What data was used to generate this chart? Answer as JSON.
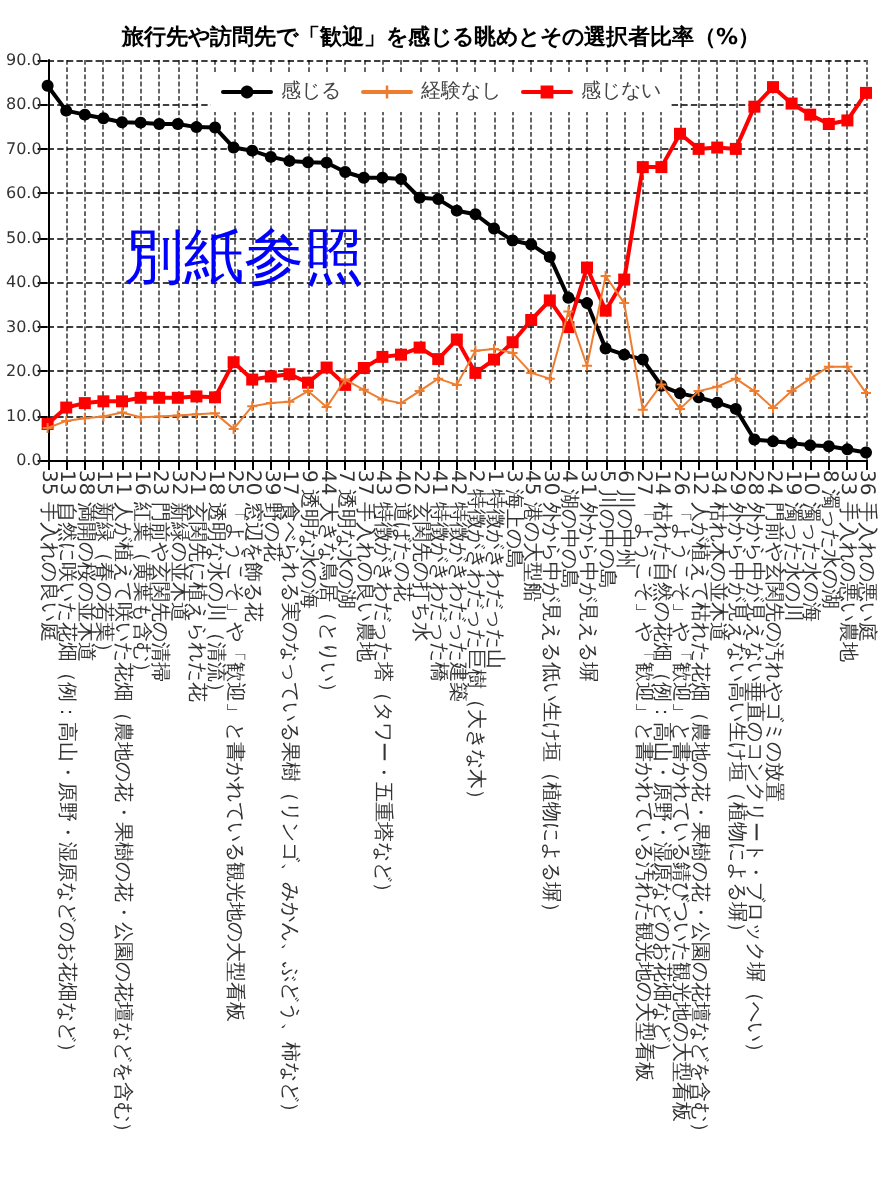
{
  "chart_data": {
    "type": "line",
    "title": "旅行先や訪問先で「歓迎」を感じる眺めとその選択者比率（%）",
    "categories": [
      "35 手入れの良い庭",
      "13 自然に咲いた花畑（例：高山・原野・湿原などのお花畑など）",
      "38 満開の桜の並木道",
      "15 新緑（春の若葉）",
      "11 人が植えて咲いた花畑（農地の花・果樹の花・公園の花壇などを含む）",
      "16 紅葉（黄葉も含む）",
      "23 門前や玄関先の清掃",
      "32 新緑の並木道",
      "21 玄関先に植えられた花",
      "18 透明な水の川（清流）",
      "25 「ようこそ」や「歓迎」と書かれている観光地の大型看板",
      "20 窓辺を飾る花",
      "39 野の花",
      "17 食べられる実のなっている果樹（リンゴ、みかん、ぶどう、柿など）",
      "9 透明な水の海",
      "44 大きな鳥居（とりい）",
      "7 透明な水の湖",
      "37 手入れの良い農地",
      "43 特徴がきわだった塔（タワー・五重塔など）",
      "40 道ばたの花",
      "22 玄関先の打ち水",
      "41 特徴がきわだった橋",
      "42 特徴がきわだった建築",
      "2 特徴がきわだった巨樹（大きな木）",
      "1 特徴がきわだった山",
      "3 海上の島",
      "45 港の大型船",
      "30 外から中が見える低い生け垣（植物による塀）",
      "4 湖の中の島",
      "31 外から中が見える塀",
      "5 川の中の島",
      "6 川の中州",
      "27 「ようこそ」や「歓迎」と書かれている汚れた観光地の大型看板",
      "14 枯れた自然の花畑（例：高山・原野・湿原などのお花畑など）",
      "26 「ようこそ」や「歓迎」と書かれている錆びついた観光地の大型看板",
      "12 人が植えて枯れた花畑（農地の花・果樹の花・公園の花壇などを含む）",
      "34 枯れ木の並木道",
      "29 外から中が見えない高い生け垣（植物による塀）",
      "28 外から中が見えない垂直のコンクリート・ブロック塀（へい）",
      "24 門前や玄関先の汚れやゴミの放置",
      "19 濁った水の川",
      "10 濁った水の海",
      "8 濁った水の湖",
      "33 手入れの悪い農地",
      "36 手入れの悪い庭"
    ],
    "series": [
      {
        "name": "感じる",
        "color": "#000000",
        "marker": "circle",
        "line_style": "solid",
        "values": [
          84.2,
          78.6,
          77.7,
          76.9,
          76.0,
          75.9,
          75.6,
          75.6,
          74.9,
          74.8,
          70.3,
          69.6,
          68.2,
          67.3,
          67.0,
          66.9,
          64.8,
          63.5,
          63.5,
          63.2,
          59.0,
          58.7,
          56.1,
          55.3,
          52.1,
          49.4,
          48.5,
          45.7,
          36.5,
          35.3,
          25.1,
          23.7,
          22.6,
          16.7,
          15.0,
          14.1,
          12.9,
          11.5,
          4.6,
          4.2,
          3.8,
          3.3,
          3.1,
          2.4,
          1.7
        ]
      },
      {
        "name": "経験なし",
        "color": "#ed7d31",
        "marker": "cross",
        "line_style": "solid",
        "values": [
          7.2,
          8.8,
          9.4,
          9.8,
          10.7,
          9.6,
          9.8,
          10.0,
          10.3,
          10.5,
          7.0,
          12.1,
          12.8,
          13.1,
          15.5,
          11.9,
          18.1,
          15.8,
          13.6,
          12.8,
          15.5,
          18.3,
          16.9,
          24.6,
          25.0,
          24.1,
          19.6,
          18.3,
          33.4,
          21.2,
          41.4,
          35.3,
          11.3,
          17.0,
          11.5,
          15.5,
          16.5,
          18.3,
          15.5,
          11.7,
          15.5,
          18.3,
          21.0,
          21.0,
          15.1
        ]
      },
      {
        "name": "感じない",
        "color": "#ff0000",
        "marker": "square",
        "line_style": "solid",
        "values": [
          8.1,
          11.8,
          12.8,
          13.2,
          13.2,
          14.0,
          14.0,
          14.0,
          14.3,
          14.1,
          22.0,
          18.1,
          18.8,
          19.3,
          17.4,
          20.8,
          16.9,
          20.7,
          23.2,
          23.7,
          25.3,
          22.7,
          27.1,
          19.6,
          22.6,
          26.5,
          31.5,
          35.9,
          29.9,
          43.3,
          33.6,
          40.6,
          65.9,
          65.9,
          73.4,
          70.0,
          70.3,
          70.0,
          79.5,
          83.9,
          80.2,
          77.7,
          75.6,
          76.4,
          82.6
        ]
      }
    ],
    "ylim": [
      0,
      90
    ],
    "yticks": [
      {
        "value": 0,
        "label": "0.0"
      },
      {
        "value": 10,
        "label": "10.0"
      },
      {
        "value": 20,
        "label": "20.0"
      },
      {
        "value": 30,
        "label": "30.0"
      },
      {
        "value": 40,
        "label": "40.0"
      },
      {
        "value": 50,
        "label": "50.0"
      },
      {
        "value": 60,
        "label": "60.0"
      },
      {
        "value": 70,
        "label": "70.0"
      },
      {
        "value": 80,
        "label": "80.0"
      },
      {
        "value": 90,
        "label": "90.0"
      }
    ],
    "grid": true,
    "legend": "top",
    "annotations": [
      "別紙参照"
    ]
  }
}
